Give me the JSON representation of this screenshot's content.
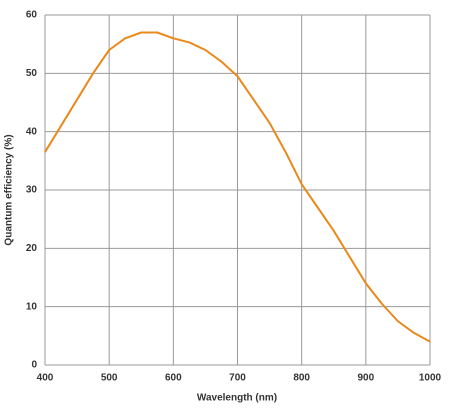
{
  "chart_data": {
    "type": "line",
    "x_label": "Wavelength (nm)",
    "y_label": "Quantum efficiency (%)",
    "x": [
      400,
      425,
      450,
      475,
      500,
      525,
      550,
      575,
      600,
      625,
      650,
      675,
      700,
      725,
      750,
      775,
      800,
      825,
      850,
      875,
      900,
      925,
      950,
      975,
      1000
    ],
    "series": [
      {
        "color": "#e8891c",
        "values": [
          36.5,
          41,
          45.5,
          50,
          54,
          56,
          57,
          57,
          56,
          55.3,
          54,
          52,
          49.5,
          45.5,
          41.5,
          36.5,
          31,
          27,
          23,
          18.5,
          14,
          10.5,
          7.5,
          5.5,
          4
        ]
      }
    ],
    "xlim": [
      400,
      1000
    ],
    "xticks": [
      400,
      500,
      600,
      700,
      800,
      900,
      1000
    ],
    "ylim": [
      0,
      60
    ],
    "yticks": [
      0,
      10,
      20,
      30,
      40,
      50,
      60
    ],
    "grid": true
  }
}
